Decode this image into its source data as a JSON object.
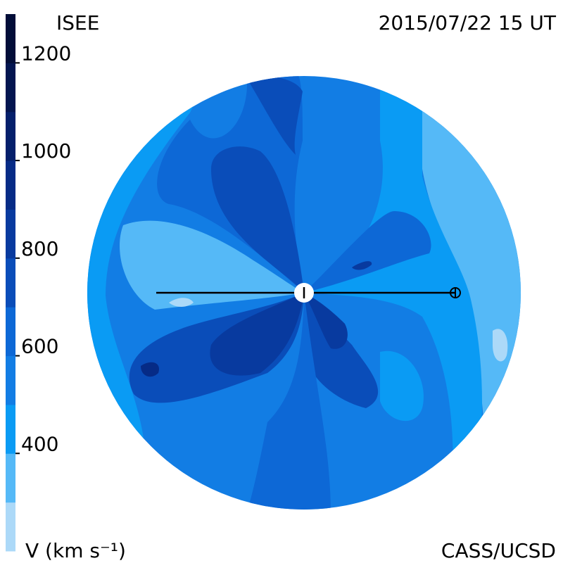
{
  "header": {
    "left": "ISEE",
    "right": "2015/07/22 15 UT"
  },
  "colorbar": {
    "range": [
      200,
      1300
    ],
    "ticks": [
      400,
      600,
      800,
      1000,
      1200
    ],
    "label": "V (km s⁻¹)",
    "colors": [
      "#acd9f8",
      "#55b9f7",
      "#0a9bf4",
      "#127de4",
      "#0d68d6",
      "#0a4db9",
      "#083a9f",
      "#062b86",
      "#041f6b",
      "#031550",
      "#020d38"
    ]
  },
  "footer": {
    "credit": "CASS/UCSD"
  }
}
